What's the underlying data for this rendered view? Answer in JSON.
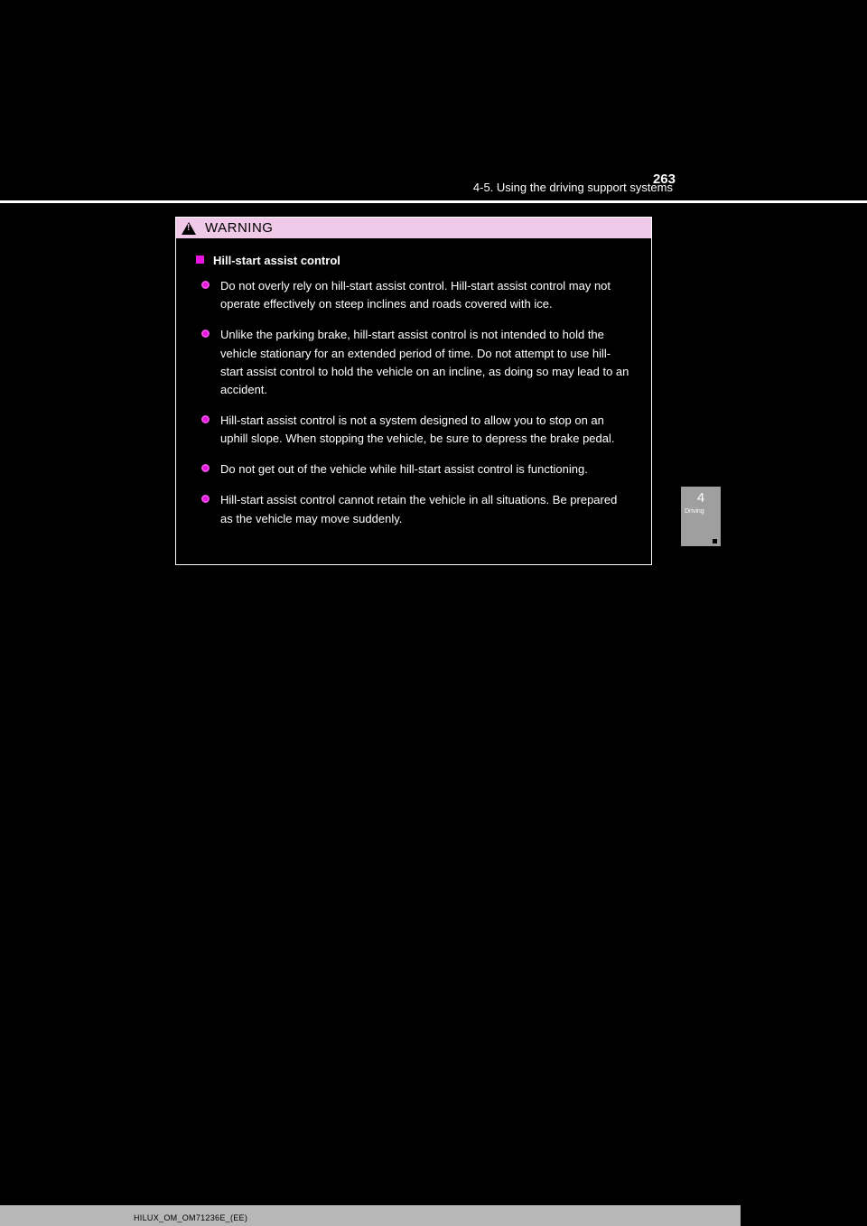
{
  "page": {
    "number": "263",
    "section": "4-5. Using the driving support systems",
    "side_tab": {
      "number": "4",
      "label": "Driving"
    }
  },
  "warning": {
    "label": "WARNING",
    "title": "Hill-start assist control",
    "bullets": [
      "Do not overly rely on hill-start assist control. Hill-start assist control may not operate effectively on steep inclines and roads covered with ice.",
      "Unlike the parking brake, hill-start assist control is not intended to hold the vehicle stationary for an extended period of time. Do not attempt to use hill-start assist control to hold the vehicle on an incline, as doing so may lead to an accident.",
      "Hill-start assist control is not a system designed to allow you to stop on an uphill slope. When stopping the vehicle, be sure to depress the brake pedal.",
      "Do not get out of the vehicle while hill-start assist control is functioning.",
      "Hill-start assist control cannot retain the vehicle in all situations. Be prepared as the vehicle may move suddenly."
    ]
  },
  "footer": "HILUX_OM_OM71236E_(EE)"
}
